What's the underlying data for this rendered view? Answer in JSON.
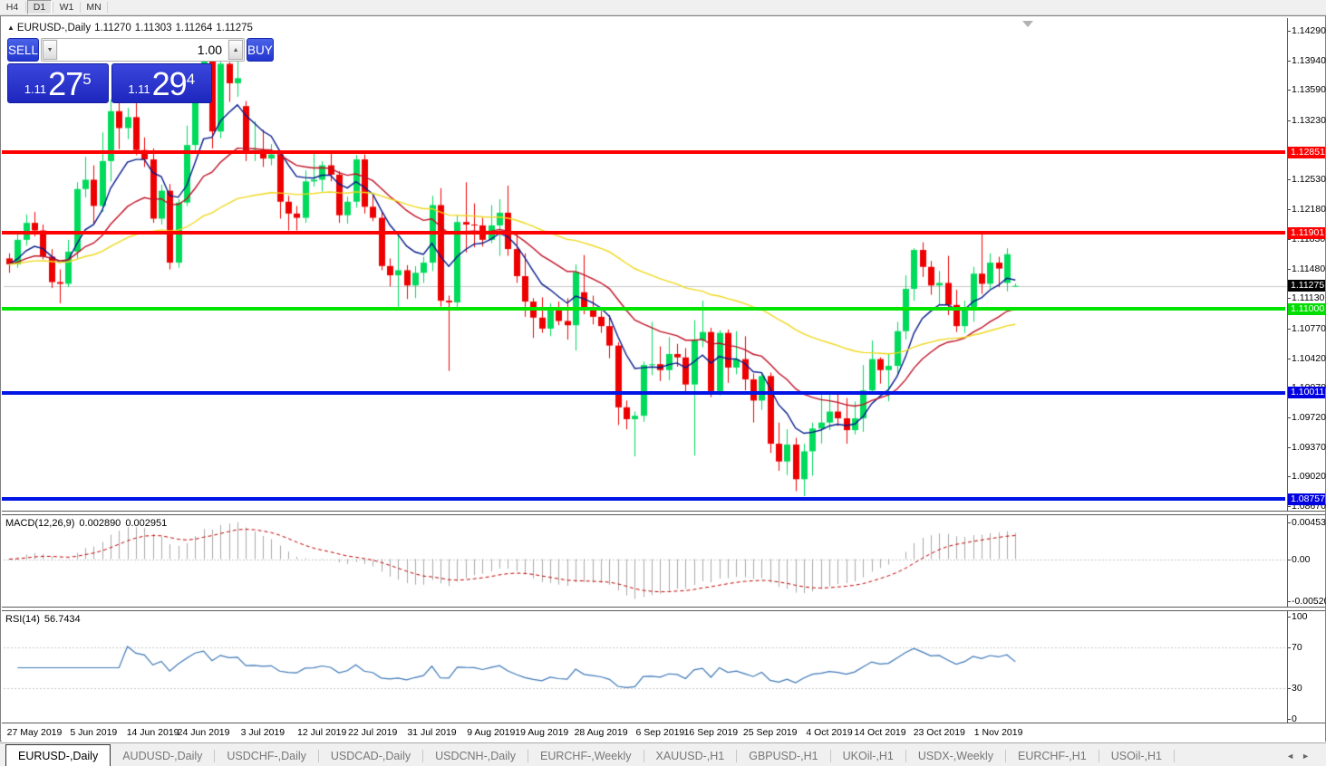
{
  "toolbar": {
    "timeframes": [
      "H4",
      "D1",
      "W1",
      "MN"
    ],
    "active": "D1"
  },
  "chart": {
    "title": {
      "collapse_icon": "▲",
      "symbol": "EURUSD-,Daily",
      "open": "1.11270",
      "high": "1.11303",
      "low": "1.11264",
      "close": "1.11275"
    },
    "trade_panel": {
      "sell_label": "SELL",
      "buy_label": "BUY",
      "volume": "1.00",
      "spinner_down_icon": "▼",
      "spinner_up_icon": "▲",
      "sell_price": {
        "small": "1.11",
        "big": "27",
        "sup": "5"
      },
      "buy_price": {
        "small": "1.11",
        "big": "29",
        "sup": "4"
      }
    },
    "price_axis_ticks": [
      "1.14290",
      "1.13940",
      "1.13590",
      "1.13230",
      "1.12530",
      "1.12180",
      "1.11830",
      "1.11480",
      "1.11130",
      "1.10770",
      "1.10420",
      "1.10070",
      "1.09720",
      "1.09370",
      "1.09020",
      "1.08670"
    ],
    "levels": [
      {
        "label": "1.12851",
        "price": 1.12851,
        "color": "#fe0000",
        "badge_bg": "#fe0000",
        "badge_fg": "#ffffff",
        "thickness": 4
      },
      {
        "label": "1.11901",
        "price": 1.11901,
        "color": "#fe0000",
        "badge_bg": "#fe0000",
        "badge_fg": "#ffffff",
        "thickness": 4
      },
      {
        "label": "1.11000",
        "price": 1.11,
        "color": "#00e400",
        "badge_bg": "#00dd00",
        "badge_fg": "#ffffff",
        "thickness": 4
      },
      {
        "label": "1.10011",
        "price": 1.10011,
        "color": "#0014e6",
        "badge_bg": "#0000e0",
        "badge_fg": "#ffffff",
        "thickness": 4
      },
      {
        "label": "1.08757",
        "price": 1.08757,
        "color": "#0014e6",
        "badge_bg": "#0000e0",
        "badge_fg": "#ffffff",
        "thickness": 4
      }
    ],
    "current_price": {
      "label": "1.11275",
      "price": 1.11275,
      "line_color": "#c8c8c8",
      "badge_bg": "#000000",
      "badge_fg": "#ffffff"
    },
    "ylim": [
      1.08608,
      1.1444
    ]
  },
  "macd": {
    "label": "MACD(12,26,9)",
    "value_main": "0.002890",
    "value_signal": "0.002951",
    "axis": [
      {
        "label": "0.004536",
        "value": 0.004536
      },
      {
        "label": "0.00",
        "value": 0.0
      },
      {
        "label": "-0.005205",
        "value": -0.005205
      }
    ],
    "ylim": [
      -0.00611,
      0.00544
    ],
    "histogram_color": "#a8a8a8",
    "signal_color": "#c00000",
    "params": [
      12,
      26,
      9
    ]
  },
  "rsi": {
    "label": "RSI(14)",
    "value": "56.7434",
    "period": 14,
    "axis": [
      {
        "label": "100",
        "value": 100
      },
      {
        "label": "70",
        "value": 70
      },
      {
        "label": "30",
        "value": 30
      },
      {
        "label": "0",
        "value": 0
      }
    ],
    "grid_levels": [
      70,
      30
    ],
    "ylim": [
      -5.3,
      105.3
    ],
    "line_color": "#3e78b8",
    "grid_color": "#c6c6c6"
  },
  "date_axis": [
    {
      "label": "27 May 2019",
      "index": 3
    },
    {
      "label": "5 Jun 2019",
      "index": 10
    },
    {
      "label": "14 Jun 2019",
      "index": 17
    },
    {
      "label": "24 Jun 2019",
      "index": 23
    },
    {
      "label": "3 Jul 2019",
      "index": 30
    },
    {
      "label": "12 Jul 2019",
      "index": 37
    },
    {
      "label": "22 Jul 2019",
      "index": 43
    },
    {
      "label": "31 Jul 2019",
      "index": 50
    },
    {
      "label": "9 Aug 2019",
      "index": 57
    },
    {
      "label": "19 Aug 2019",
      "index": 63
    },
    {
      "label": "28 Aug 2019",
      "index": 70
    },
    {
      "label": "6 Sep 2019",
      "index": 77
    },
    {
      "label": "16 Sep 2019",
      "index": 83
    },
    {
      "label": "25 Sep 2019",
      "index": 90
    },
    {
      "label": "4 Oct 2019",
      "index": 97
    },
    {
      "label": "14 Oct 2019",
      "index": 103
    },
    {
      "label": "23 Oct 2019",
      "index": 110
    },
    {
      "label": "1 Nov 2019",
      "index": 117
    }
  ],
  "tabs": {
    "items": [
      "EURUSD-,Daily",
      "AUDUSD-,Daily",
      "USDCHF-,Daily",
      "USDCAD-,Daily",
      "USDCNH-,Daily",
      "EURCHF-,Weekly",
      "XAUUSD-,H1",
      "GBPUSD-,H1",
      "UKOil-,H1",
      "USDX-,Weekly",
      "EURCHF-,H1",
      "USOil-,H1"
    ],
    "active": "EURUSD-,Daily",
    "scroll_left_icon": "◄",
    "scroll_right_icon": "►"
  },
  "chart_data": {
    "type": "candlestick",
    "symbol": "EURUSD-",
    "timeframe": "Daily",
    "up_color": "#00db5c",
    "down_color": "#ee0000",
    "moving_averages": [
      {
        "method": "ema",
        "period": 8,
        "color": "#031a8b"
      },
      {
        "method": "ema",
        "period": 21,
        "color": "#c01025"
      },
      {
        "method": "ema",
        "period": 55,
        "color": "#eed81c"
      }
    ],
    "ohlc": [
      [
        1.116,
        1.1166,
        1.1143,
        1.1153
      ],
      [
        1.1153,
        1.119,
        1.1149,
        1.1182
      ],
      [
        1.1182,
        1.1212,
        1.1175,
        1.1202
      ],
      [
        1.1202,
        1.1215,
        1.1186,
        1.1193
      ],
      [
        1.1193,
        1.12,
        1.1159,
        1.1162
      ],
      [
        1.1162,
        1.1171,
        1.1125,
        1.1132
      ],
      [
        1.1132,
        1.1147,
        1.1107,
        1.113
      ],
      [
        1.113,
        1.1182,
        1.1126,
        1.1168
      ],
      [
        1.1168,
        1.125,
        1.116,
        1.1242
      ],
      [
        1.1242,
        1.128,
        1.1232,
        1.1253
      ],
      [
        1.1253,
        1.127,
        1.1201,
        1.1222
      ],
      [
        1.1222,
        1.1309,
        1.1215,
        1.1275
      ],
      [
        1.1275,
        1.1348,
        1.1251,
        1.1334
      ],
      [
        1.1334,
        1.1345,
        1.1289,
        1.1314
      ],
      [
        1.1314,
        1.1338,
        1.1301,
        1.1327
      ],
      [
        1.1327,
        1.1344,
        1.1282,
        1.1288
      ],
      [
        1.1288,
        1.1303,
        1.1268,
        1.1277
      ],
      [
        1.1277,
        1.129,
        1.1202,
        1.1207
      ],
      [
        1.1207,
        1.1247,
        1.12,
        1.124
      ],
      [
        1.124,
        1.1248,
        1.1147,
        1.1155
      ],
      [
        1.1155,
        1.123,
        1.1149,
        1.1226
      ],
      [
        1.1226,
        1.1317,
        1.1222,
        1.1294
      ],
      [
        1.1294,
        1.1378,
        1.1285,
        1.1369
      ],
      [
        1.1369,
        1.1406,
        1.1362,
        1.1399
      ],
      [
        1.1399,
        1.1412,
        1.129,
        1.131
      ],
      [
        1.131,
        1.1398,
        1.1302,
        1.139
      ],
      [
        1.139,
        1.1392,
        1.1345,
        1.1367
      ],
      [
        1.1367,
        1.1394,
        1.1351,
        1.1373
      ],
      [
        1.134,
        1.1346,
        1.1275,
        1.1285
      ],
      [
        1.1285,
        1.1322,
        1.1275,
        1.1288
      ],
      [
        1.1288,
        1.1312,
        1.1268,
        1.1278
      ],
      [
        1.1278,
        1.1295,
        1.127,
        1.1283
      ],
      [
        1.1283,
        1.1287,
        1.1207,
        1.1227
      ],
      [
        1.1227,
        1.1234,
        1.1193,
        1.1213
      ],
      [
        1.1213,
        1.1222,
        1.1193,
        1.1208
      ],
      [
        1.1208,
        1.1264,
        1.1202,
        1.1251
      ],
      [
        1.1251,
        1.1286,
        1.1245,
        1.1253
      ],
      [
        1.1253,
        1.1275,
        1.1239,
        1.127
      ],
      [
        1.127,
        1.1284,
        1.1251,
        1.1259
      ],
      [
        1.1259,
        1.1263,
        1.1202,
        1.1211
      ],
      [
        1.1211,
        1.1233,
        1.1201,
        1.1227
      ],
      [
        1.1227,
        1.1282,
        1.122,
        1.1277
      ],
      [
        1.1277,
        1.1283,
        1.1213,
        1.1221
      ],
      [
        1.1221,
        1.1235,
        1.1204,
        1.1208
      ],
      [
        1.1208,
        1.1215,
        1.1146,
        1.1151
      ],
      [
        1.1151,
        1.116,
        1.1127,
        1.114
      ],
      [
        1.114,
        1.1188,
        1.1102,
        1.1146
      ],
      [
        1.1146,
        1.1152,
        1.1112,
        1.1128
      ],
      [
        1.1128,
        1.1151,
        1.1113,
        1.1143
      ],
      [
        1.1143,
        1.1162,
        1.1131,
        1.1155
      ],
      [
        1.1155,
        1.1234,
        1.1145,
        1.1223
      ],
      [
        1.1223,
        1.1243,
        1.1103,
        1.111
      ],
      [
        1.111,
        1.1116,
        1.1027,
        1.1108
      ],
      [
        1.1108,
        1.1211,
        1.1101,
        1.1203
      ],
      [
        1.1203,
        1.125,
        1.1167,
        1.12
      ],
      [
        1.12,
        1.1225,
        1.1173,
        1.1199
      ],
      [
        1.1199,
        1.1208,
        1.1174,
        1.1182
      ],
      [
        1.1182,
        1.1223,
        1.1178,
        1.1199
      ],
      [
        1.1199,
        1.123,
        1.1163,
        1.1214
      ],
      [
        1.1214,
        1.1246,
        1.1163,
        1.1171
      ],
      [
        1.1171,
        1.1192,
        1.1131,
        1.1139
      ],
      [
        1.1139,
        1.1166,
        1.1091,
        1.1109
      ],
      [
        1.1109,
        1.1113,
        1.1066,
        1.109
      ],
      [
        1.109,
        1.1114,
        1.1072,
        1.1077
      ],
      [
        1.1077,
        1.1107,
        1.1068,
        1.1099
      ],
      [
        1.1099,
        1.1109,
        1.1081,
        1.1086
      ],
      [
        1.1086,
        1.1113,
        1.1064,
        1.1081
      ],
      [
        1.1081,
        1.1153,
        1.1051,
        1.1144
      ],
      [
        1.112,
        1.1164,
        1.1094,
        1.1101
      ],
      [
        1.1101,
        1.1116,
        1.1082,
        1.1091
      ],
      [
        1.1091,
        1.1098,
        1.1072,
        1.108
      ],
      [
        1.108,
        1.1093,
        1.1042,
        1.1057
      ],
      [
        1.1057,
        1.1061,
        1.0963,
        1.0984
      ],
      [
        1.0984,
        1.0992,
        1.0958,
        1.097
      ],
      [
        1.097,
        1.0979,
        1.0926,
        1.0974
      ],
      [
        1.0974,
        1.1038,
        1.0967,
        1.1034
      ],
      [
        1.1034,
        1.1085,
        1.1022,
        1.1035
      ],
      [
        1.1035,
        1.1056,
        1.1015,
        1.1028
      ],
      [
        1.1028,
        1.1067,
        1.1016,
        1.1047
      ],
      [
        1.1047,
        1.1059,
        1.1032,
        1.1043
      ],
      [
        1.1043,
        1.1054,
        1.1001,
        1.1011
      ],
      [
        1.1011,
        1.1087,
        1.0927,
        1.1063
      ],
      [
        1.1063,
        1.111,
        1.1055,
        1.1073
      ],
      [
        1.1073,
        1.1078,
        1.0996,
        1.1003
      ],
      [
        1.1003,
        1.1075,
        1.0998,
        1.1072
      ],
      [
        1.1072,
        1.1076,
        1.1013,
        1.1031
      ],
      [
        1.1031,
        1.1074,
        1.1023,
        1.1041
      ],
      [
        1.1041,
        1.1068,
        1.1004,
        1.1017
      ],
      [
        1.1017,
        1.1024,
        1.0966,
        1.0992
      ],
      [
        1.0992,
        1.1024,
        1.0981,
        1.1021
      ],
      [
        1.1021,
        1.1025,
        1.093,
        1.0941
      ],
      [
        1.0941,
        1.0966,
        1.0909,
        1.092
      ],
      [
        1.092,
        1.0958,
        1.0904,
        1.094
      ],
      [
        1.094,
        1.0948,
        1.0885,
        1.0899
      ],
      [
        1.0899,
        1.0941,
        1.0879,
        1.0932
      ],
      [
        1.0932,
        1.0966,
        1.0903,
        1.0959
      ],
      [
        1.0959,
        1.0999,
        1.0941,
        1.0966
      ],
      [
        1.0966,
        1.0999,
        1.0957,
        1.0979
      ],
      [
        1.0979,
        1.1,
        1.0962,
        1.0971
      ],
      [
        1.0971,
        1.0995,
        1.0941,
        1.0957
      ],
      [
        1.0957,
        1.0991,
        1.0952,
        1.0971
      ],
      [
        1.0971,
        1.1034,
        1.0955,
        1.1004
      ],
      [
        1.1004,
        1.1063,
        1.1002,
        1.1041
      ],
      [
        1.1041,
        1.1043,
        1.1012,
        1.1028
      ],
      [
        1.1028,
        1.1047,
        1.0991,
        1.1033
      ],
      [
        1.1033,
        1.1085,
        1.1024,
        1.1074
      ],
      [
        1.1074,
        1.114,
        1.1064,
        1.1124
      ],
      [
        1.1124,
        1.1172,
        1.111,
        1.117
      ],
      [
        1.117,
        1.1179,
        1.1138,
        1.115
      ],
      [
        1.115,
        1.1157,
        1.1117,
        1.1128
      ],
      [
        1.1128,
        1.1145,
        1.1105,
        1.1131
      ],
      [
        1.1131,
        1.1163,
        1.1093,
        1.1105
      ],
      [
        1.1105,
        1.1123,
        1.1073,
        1.108
      ],
      [
        1.108,
        1.111,
        1.1072,
        1.1099
      ],
      [
        1.1099,
        1.115,
        1.1085,
        1.1142
      ],
      [
        1.1142,
        1.1189,
        1.1118,
        1.113
      ],
      [
        1.113,
        1.1166,
        1.1124,
        1.1155
      ],
      [
        1.1155,
        1.1162,
        1.1126,
        1.1148
      ],
      [
        1.1131,
        1.1172,
        1.1121,
        1.1165
      ],
      [
        1.1127,
        1.11303,
        1.11264,
        1.11275
      ]
    ]
  }
}
